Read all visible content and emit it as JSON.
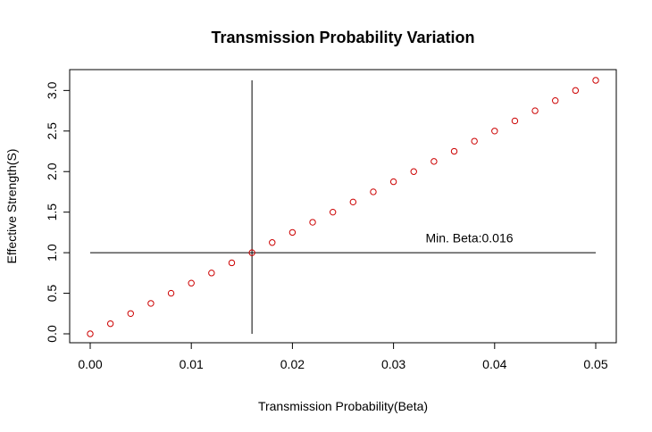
{
  "chart_data": {
    "type": "scatter",
    "title": "Transmission Probability Variation",
    "xlabel": "Transmission Probability(Beta)",
    "ylabel": "Effective Strength(S)",
    "xlim": [
      0.0,
      0.05
    ],
    "ylim": [
      0.0,
      3.125
    ],
    "xticks": [
      0.0,
      0.01,
      0.02,
      0.03,
      0.04,
      0.05
    ],
    "xtick_labels": [
      "0.00",
      "0.01",
      "0.02",
      "0.03",
      "0.04",
      "0.05"
    ],
    "yticks": [
      0.0,
      0.5,
      1.0,
      1.5,
      2.0,
      2.5,
      3.0
    ],
    "ytick_labels": [
      "0.0",
      "0.5",
      "1.0",
      "1.5",
      "2.0",
      "2.5",
      "3.0"
    ],
    "grid": false,
    "point_color": "#cc0000",
    "x": [
      0.0,
      0.002,
      0.004,
      0.006,
      0.008,
      0.01,
      0.012,
      0.014,
      0.016,
      0.018,
      0.02,
      0.022,
      0.024,
      0.026,
      0.028,
      0.03,
      0.032,
      0.034,
      0.036,
      0.038,
      0.04,
      0.042,
      0.044,
      0.046,
      0.048,
      0.05
    ],
    "y": [
      0.0,
      0.125,
      0.25,
      0.375,
      0.5,
      0.625,
      0.75,
      0.875,
      1.0,
      1.125,
      1.25,
      1.375,
      1.5,
      1.625,
      1.75,
      1.875,
      2.0,
      2.125,
      2.25,
      2.375,
      2.5,
      2.625,
      2.75,
      2.875,
      3.0,
      3.125
    ],
    "hline": {
      "y": 1.0,
      "x_from": 0.0,
      "x_to": 0.05
    },
    "vline": {
      "x": 0.016,
      "y_from": 0.0,
      "y_to": 3.125
    },
    "annotation": {
      "text": "Min. Beta:0.016",
      "x": 0.0375,
      "y": 1.13
    }
  }
}
